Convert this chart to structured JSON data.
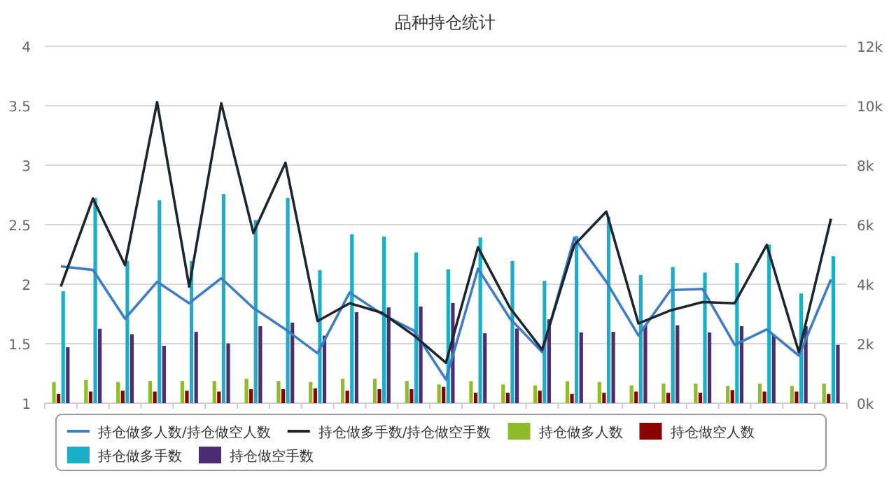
{
  "chart_data": {
    "type": "bar",
    "title": "品种持仓统计",
    "categories": [
      null,
      null,
      null,
      null,
      null,
      null,
      null,
      null,
      null,
      null,
      null,
      null,
      null,
      null,
      null,
      null,
      null,
      null,
      null,
      null,
      null,
      null,
      null,
      null,
      null
    ],
    "series": [
      {
        "name": "持仓做多人数/持仓做空人数",
        "type": "line",
        "color": "#3d7cc9",
        "values": [
          2.15,
          2.12,
          1.71,
          2.02,
          1.84,
          2.05,
          1.8,
          1.62,
          1.42,
          1.93,
          1.75,
          1.61,
          1.2,
          2.13,
          1.71,
          1.43,
          2.39,
          2.02,
          1.57,
          1.95,
          1.96,
          1.49,
          1.62,
          1.4,
          2.04
        ]
      },
      {
        "name": "持仓做多手数/持仓做空手数",
        "type": "line",
        "color": "#1c2630",
        "values": [
          1.98,
          2.72,
          2.16,
          3.53,
          1.98,
          3.52,
          2.43,
          3.02,
          1.69,
          1.84,
          1.76,
          1.57,
          1.34,
          2.31,
          1.8,
          1.45,
          2.33,
          2.61,
          1.67,
          1.78,
          1.85,
          1.84,
          2.33,
          1.43,
          2.55
        ]
      },
      {
        "name": "持仓做多人数",
        "axis": "y2",
        "color": "#8fbc2b",
        "values": [
          710,
          780,
          710,
          750,
          750,
          750,
          820,
          750,
          710,
          820,
          820,
          750,
          630,
          740,
          630,
          600,
          740,
          710,
          600,
          660,
          660,
          580,
          660,
          580,
          660
        ]
      },
      {
        "name": "持仓做空人数",
        "axis": "y2",
        "color": "#8b0000",
        "values": [
          310,
          390,
          420,
          390,
          420,
          390,
          470,
          470,
          500,
          420,
          470,
          470,
          550,
          350,
          350,
          420,
          310,
          350,
          390,
          350,
          350,
          440,
          390,
          390,
          310
        ]
      },
      {
        "name": "持仓做多手数",
        "axis": "y2",
        "color": "#1aafc8",
        "values": [
          3760,
          6900,
          4780,
          6820,
          4780,
          7030,
          6160,
          6900,
          4470,
          5680,
          5600,
          5070,
          4500,
          5570,
          4780,
          4110,
          5620,
          6270,
          4310,
          4580,
          4390,
          4710,
          5330,
          3690,
          4940
        ]
      },
      {
        "name": "持仓做空手数",
        "axis": "y2",
        "color": "#4b2d73",
        "values": [
          1880,
          2500,
          2320,
          1930,
          2400,
          2010,
          2590,
          2710,
          2270,
          3060,
          3220,
          3250,
          3370,
          2350,
          2510,
          2820,
          2380,
          2400,
          2620,
          2620,
          2380,
          2590,
          2310,
          2590,
          1960
        ]
      }
    ],
    "ylim": [
      1,
      4
    ],
    "yticks": [
      1,
      1.5,
      2,
      2.5,
      3,
      3.5,
      4
    ],
    "y2lim": [
      0,
      12000
    ],
    "y2ticks": [
      {
        "value": 0,
        "label": "0k"
      },
      {
        "value": 2000,
        "label": "2k"
      },
      {
        "value": 4000,
        "label": "4k"
      },
      {
        "value": 6000,
        "label": "6k"
      },
      {
        "value": 8000,
        "label": "8k"
      },
      {
        "value": 10000,
        "label": "10k"
      },
      {
        "value": 12000,
        "label": "12k"
      }
    ],
    "grid": "y",
    "legend": "bottom"
  }
}
